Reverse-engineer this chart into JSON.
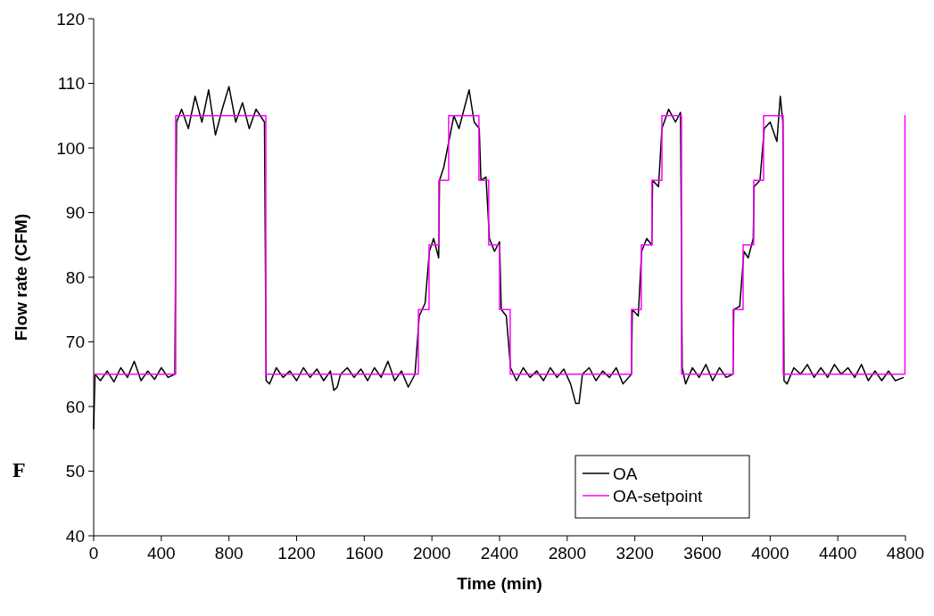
{
  "chart_data": {
    "type": "line",
    "xlabel": "Time (min)",
    "ylabel": "Flow rate (CFM)",
    "xlim": [
      0,
      4800
    ],
    "xticks": [
      0,
      400,
      800,
      1200,
      1600,
      2000,
      2400,
      2800,
      3200,
      3600,
      4000,
      4400,
      4800
    ],
    "ylim": [
      40,
      120
    ],
    "yticks": [
      40,
      50,
      60,
      70,
      80,
      90,
      100,
      110,
      120
    ],
    "grid": false,
    "legend": "bottom right",
    "annotations": [
      "F"
    ],
    "series": [
      {
        "name": "OA",
        "color": "#000000",
        "x": [
          0,
          8,
          40,
          80,
          120,
          160,
          200,
          240,
          280,
          320,
          360,
          400,
          440,
          480,
          490,
          520,
          560,
          600,
          640,
          680,
          720,
          760,
          800,
          840,
          880,
          920,
          960,
          1010,
          1020,
          1040,
          1080,
          1120,
          1160,
          1200,
          1240,
          1280,
          1320,
          1360,
          1400,
          1420,
          1440,
          1460,
          1500,
          1540,
          1580,
          1620,
          1660,
          1700,
          1740,
          1780,
          1820,
          1860,
          1900,
          1925,
          1960,
          1985,
          2010,
          2040,
          2045,
          2070,
          2100,
          2130,
          2160,
          2200,
          2220,
          2250,
          2280,
          2290,
          2320,
          2340,
          2370,
          2400,
          2410,
          2440,
          2465,
          2500,
          2540,
          2580,
          2620,
          2660,
          2700,
          2740,
          2780,
          2820,
          2850,
          2870,
          2890,
          2930,
          2970,
          3010,
          3050,
          3090,
          3130,
          3180,
          3185,
          3220,
          3240,
          3270,
          3300,
          3305,
          3340,
          3360,
          3400,
          3440,
          3470,
          3480,
          3500,
          3540,
          3580,
          3620,
          3660,
          3700,
          3740,
          3780,
          3785,
          3820,
          3845,
          3870,
          3900,
          3905,
          3940,
          3965,
          4000,
          4040,
          4060,
          4075,
          4082,
          4100,
          4140,
          4180,
          4220,
          4260,
          4300,
          4340,
          4380,
          4420,
          4460,
          4500,
          4540,
          4580,
          4620,
          4660,
          4700,
          4740,
          4790
        ],
        "values": [
          56.5,
          65,
          64,
          65.5,
          63.8,
          66,
          64.5,
          67,
          64,
          65.5,
          64.2,
          66,
          64.5,
          65,
          104,
          106,
          103,
          108,
          104,
          109,
          102,
          106,
          109.5,
          104,
          107,
          103,
          106,
          104,
          64,
          63.5,
          66,
          64.5,
          65.5,
          64,
          66,
          64.5,
          65.8,
          64,
          65.5,
          62.5,
          63,
          65,
          66,
          64.5,
          65.8,
          64,
          66,
          64.5,
          67,
          64,
          65.5,
          63,
          65,
          74,
          76,
          84,
          86,
          83,
          95,
          97,
          101,
          105,
          103,
          107,
          109,
          104,
          103,
          95,
          95.5,
          86,
          84,
          85.5,
          75,
          74,
          66,
          64,
          66,
          64.5,
          65.5,
          64,
          66,
          64.5,
          65.8,
          63.5,
          60.5,
          60.5,
          65,
          66,
          64,
          65.5,
          64.5,
          66,
          63.5,
          65,
          75,
          74,
          84,
          86,
          85,
          95,
          94,
          103,
          106,
          104,
          105.5,
          66,
          63.5,
          66,
          64.5,
          66.5,
          64,
          66,
          64.5,
          65,
          75,
          75.5,
          84,
          83,
          86,
          94,
          95,
          103,
          104,
          101,
          108,
          104,
          64,
          63.5,
          66,
          65,
          66.5,
          64.5,
          66,
          64.5,
          66.5,
          65,
          66,
          64.5,
          66.5,
          64,
          65.5,
          64,
          65.5,
          64,
          64.5
        ]
      },
      {
        "name": "OA-setpoint",
        "type": "step",
        "color": "#ff00ff",
        "x": [
          0,
          485,
          1018,
          1920,
          1983,
          2041,
          2099,
          2278,
          2336,
          2400,
          2463,
          3180,
          3238,
          3301,
          3360,
          3476,
          3781,
          3840,
          3903,
          3961,
          4077,
          4797,
          4800
        ],
        "values": [
          65,
          105,
          65,
          75,
          85,
          95,
          105,
          95,
          85,
          75,
          65,
          75,
          85,
          95,
          105,
          65,
          75,
          85,
          95,
          105,
          65,
          105,
          105
        ]
      }
    ]
  }
}
